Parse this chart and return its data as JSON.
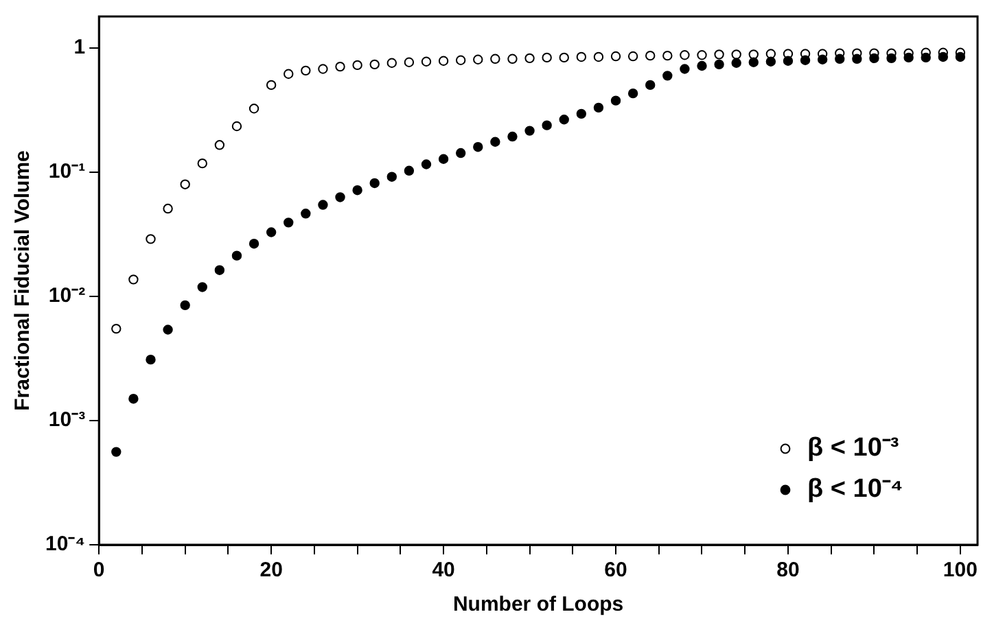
{
  "chart_data": {
    "type": "scatter",
    "xlabel": "Number of Loops",
    "ylabel": "Fractional Fiducial Volume",
    "x": [
      2,
      4,
      6,
      8,
      10,
      12,
      14,
      16,
      18,
      20,
      22,
      24,
      26,
      28,
      30,
      32,
      34,
      36,
      38,
      40,
      42,
      44,
      46,
      48,
      50,
      52,
      54,
      56,
      58,
      60,
      62,
      64,
      66,
      68,
      70,
      72,
      74,
      76,
      78,
      80,
      82,
      84,
      86,
      88,
      90,
      92,
      94,
      96,
      98,
      100
    ],
    "series": [
      {
        "name": "β < 10⁻³",
        "color": "#000000",
        "values": [
          0.0055,
          0.0137,
          0.029,
          0.051,
          0.08,
          0.118,
          0.166,
          0.235,
          0.326,
          0.505,
          0.62,
          0.66,
          0.68,
          0.71,
          0.73,
          0.74,
          0.76,
          0.77,
          0.78,
          0.79,
          0.8,
          0.81,
          0.82,
          0.82,
          0.83,
          0.84,
          0.84,
          0.85,
          0.85,
          0.86,
          0.86,
          0.87,
          0.87,
          0.88,
          0.88,
          0.89,
          0.89,
          0.89,
          0.9,
          0.9,
          0.9,
          0.9,
          0.91,
          0.91,
          0.91,
          0.91,
          0.91,
          0.92,
          0.92,
          0.92
        ]
      },
      {
        "name": "β < 10⁻⁴",
        "color": "#000000",
        "values": [
          0.00056,
          0.0015,
          0.0031,
          0.0054,
          0.0085,
          0.0119,
          0.0163,
          0.0213,
          0.0266,
          0.0329,
          0.0394,
          0.0465,
          0.0547,
          0.063,
          0.0718,
          0.0818,
          0.092,
          0.103,
          0.116,
          0.128,
          0.143,
          0.16,
          0.176,
          0.194,
          0.216,
          0.239,
          0.266,
          0.296,
          0.332,
          0.378,
          0.432,
          0.505,
          0.6,
          0.68,
          0.72,
          0.74,
          0.76,
          0.77,
          0.78,
          0.79,
          0.8,
          0.81,
          0.82,
          0.82,
          0.83,
          0.83,
          0.84,
          0.84,
          0.85,
          0.85
        ]
      }
    ],
    "xlim": [
      0,
      102
    ],
    "xticks": [
      0,
      {
        "value": 5,
        "label": null
      },
      {
        "value": 10,
        "label": null
      },
      {
        "value": 15,
        "label": null
      },
      20,
      {
        "value": 25,
        "label": null
      },
      {
        "value": 30,
        "label": null
      },
      {
        "value": 35,
        "label": null
      },
      40,
      {
        "value": 45,
        "label": null
      },
      {
        "value": 50,
        "label": null
      },
      {
        "value": 55,
        "label": null
      },
      60,
      {
        "value": 65,
        "label": null
      },
      {
        "value": 70,
        "label": null
      },
      {
        "value": 75,
        "label": null
      },
      80,
      {
        "value": 85,
        "label": null
      },
      {
        "value": 90,
        "label": null
      },
      {
        "value": 95,
        "label": null
      },
      100
    ],
    "ylim": [
      0.0001,
      1.8
    ],
    "yticks": [
      {
        "value": 0.0001,
        "label": "10⁻⁴"
      },
      {
        "value": 0.001,
        "label": "10⁻³"
      },
      {
        "value": 0.01,
        "label": "10⁻²"
      },
      {
        "value": 0.1,
        "label": "10⁻¹"
      },
      1
    ],
    "log": "y",
    "grid": false,
    "legend": "bottom right",
    "marker": "circle"
  }
}
